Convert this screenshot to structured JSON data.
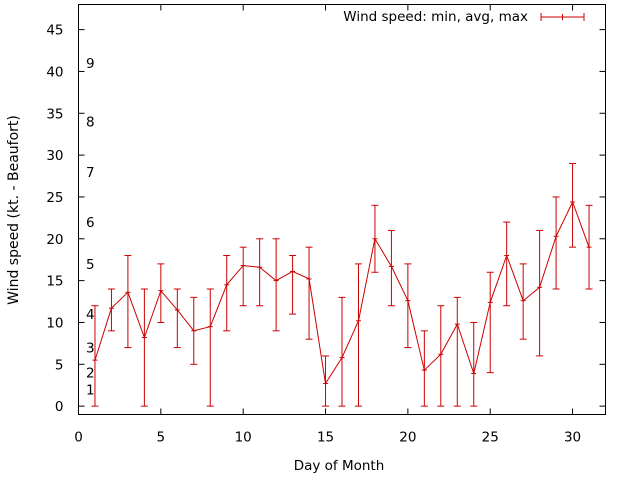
{
  "chart_data": {
    "type": "line",
    "title": "",
    "xlabel": "Day of Month",
    "ylabel": "Wind speed (kt. - Beaufort)",
    "xlim": [
      0,
      32
    ],
    "ylim": [
      -1,
      48
    ],
    "xticks": [
      0,
      5,
      10,
      15,
      20,
      25,
      30
    ],
    "yticks": [
      0,
      5,
      10,
      15,
      20,
      25,
      30,
      35,
      40,
      45
    ],
    "grid": false,
    "legend_position": "top-right",
    "series": [
      {
        "name": "Wind speed: min, avg, max",
        "color": "#cc0000",
        "style": "line with error bars",
        "x": [
          1,
          2,
          3,
          4,
          5,
          6,
          7,
          8,
          9,
          10,
          11,
          12,
          13,
          14,
          15,
          16,
          17,
          18,
          19,
          20,
          21,
          22,
          23,
          24,
          25,
          26,
          27,
          28,
          29,
          30,
          31
        ],
        "avg": [
          5.5,
          11.7,
          13.6,
          8.2,
          13.8,
          11.5,
          9.0,
          9.5,
          14.5,
          16.8,
          16.6,
          15.0,
          16.1,
          15.2,
          2.7,
          5.8,
          10.2,
          20.0,
          16.7,
          12.6,
          4.3,
          6.2,
          9.8,
          3.9,
          12.4,
          18.0,
          12.6,
          14.2,
          20.3,
          24.4,
          19.0
        ],
        "min": [
          0,
          9,
          7,
          0,
          10,
          7,
          5,
          0,
          9,
          12,
          12,
          9,
          11,
          8,
          0,
          0,
          0,
          16,
          12,
          7,
          0,
          0,
          0,
          0,
          4,
          12,
          8,
          6,
          14,
          19,
          14
        ],
        "max": [
          12,
          14,
          18,
          14,
          17,
          14,
          13,
          14,
          18,
          19,
          20,
          20,
          18,
          19,
          6,
          13,
          17,
          24,
          21,
          17,
          9,
          12,
          13,
          10,
          16,
          22,
          17,
          21,
          25,
          29,
          24
        ]
      }
    ],
    "beaufort_scale_labels": [
      {
        "label": "1",
        "value": 2
      },
      {
        "label": "2",
        "value": 4
      },
      {
        "label": "3",
        "value": 7
      },
      {
        "label": "4",
        "value": 11
      },
      {
        "label": "5",
        "value": 17
      },
      {
        "label": "6",
        "value": 22
      },
      {
        "label": "7",
        "value": 28
      },
      {
        "label": "8",
        "value": 34
      },
      {
        "label": "9",
        "value": 41
      }
    ]
  }
}
